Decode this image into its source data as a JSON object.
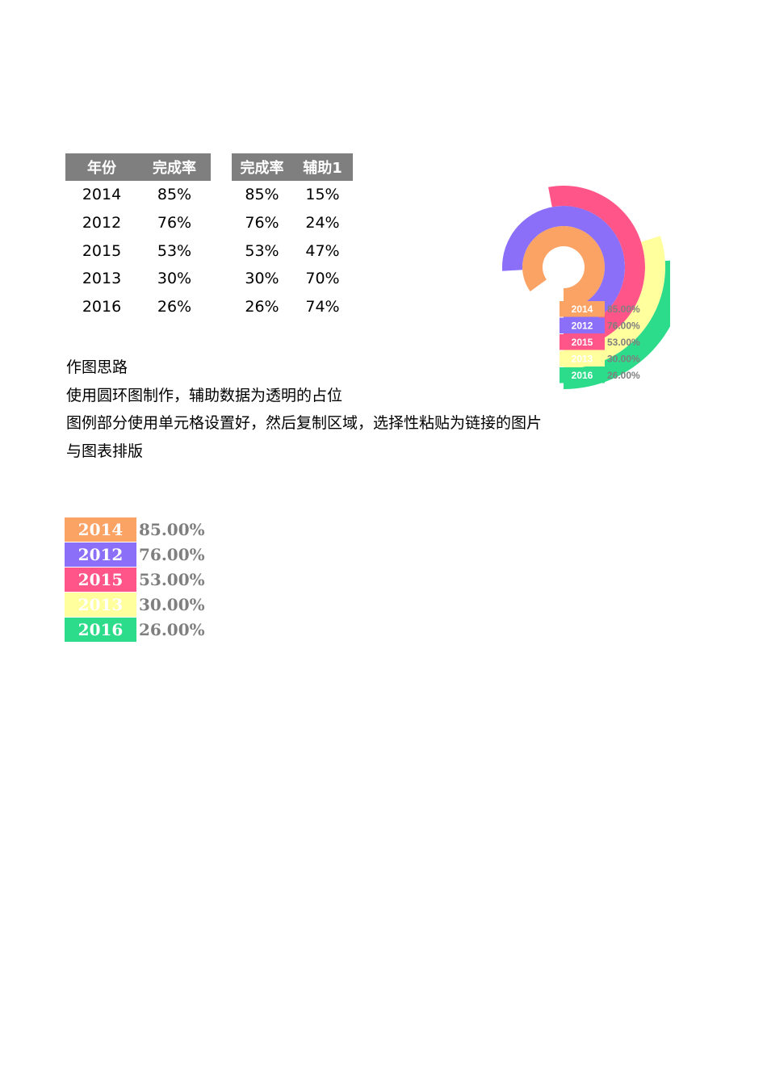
{
  "table1": {
    "headers": [
      "年份",
      "完成率"
    ],
    "rows": [
      [
        "2014",
        "85%"
      ],
      [
        "2012",
        "76%"
      ],
      [
        "2015",
        "53%"
      ],
      [
        "2013",
        "30%"
      ],
      [
        "2016",
        "26%"
      ]
    ]
  },
  "table2": {
    "headers": [
      "完成率",
      "辅助1"
    ],
    "rows": [
      [
        "85%",
        "15%"
      ],
      [
        "76%",
        "24%"
      ],
      [
        "53%",
        "47%"
      ],
      [
        "30%",
        "70%"
      ],
      [
        "26%",
        "74%"
      ]
    ]
  },
  "notes": [
    "作图思路",
    "使用圆环图制作，辅助数据为透明的占位",
    "图例部分使用单元格设置好，然后复制区域，选择性粘贴为链接的图片",
    "与图表排版"
  ],
  "legend": [
    {
      "year": "2014",
      "pct": "85.00%",
      "color": "#fba265"
    },
    {
      "year": "2012",
      "pct": "76.00%",
      "color": "#8c6ff8"
    },
    {
      "year": "2015",
      "pct": "53.00%",
      "color": "#ff5589"
    },
    {
      "year": "2013",
      "pct": "30.00%",
      "color": "#ffff9d"
    },
    {
      "year": "2016",
      "pct": "26.00%",
      "color": "#2cdc8a"
    }
  ],
  "chart_data": {
    "type": "doughnut",
    "title": "",
    "series": [
      {
        "name": "2014",
        "value": 0.85,
        "placeholder": 0.15,
        "color": "#fba265"
      },
      {
        "name": "2012",
        "value": 0.76,
        "placeholder": 0.24,
        "color": "#8c6ff8"
      },
      {
        "name": "2015",
        "value": 0.53,
        "placeholder": 0.47,
        "color": "#ff5589"
      },
      {
        "name": "2013",
        "value": 0.3,
        "placeholder": 0.7,
        "color": "#ffff9d"
      },
      {
        "name": "2016",
        "value": 0.26,
        "placeholder": 0.74,
        "color": "#2cdc8a"
      }
    ],
    "direction": "counterclockwise",
    "start": "bottom",
    "legend_position": "bottom-right"
  }
}
